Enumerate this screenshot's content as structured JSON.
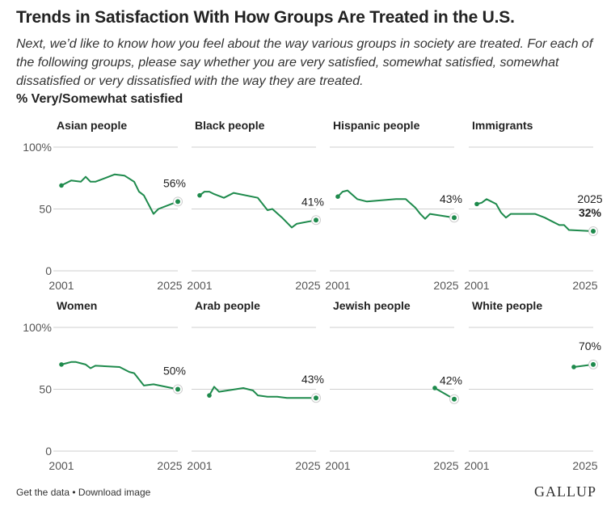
{
  "title": "Trends in Satisfaction With How Groups Are Treated in the U.S.",
  "subtitle": "Next, we’d like to know how you feel about the way various groups in society are treated. For each of the following groups, please say whether you are very satisfied, somewhat satisfied, somewhat dissatisfied or very dissatisfied with the way they are treated.",
  "measure_label": "% Very/Somewhat satisfied",
  "footer": {
    "get_data": "Get the data",
    "separator": " • ",
    "download": "Download image",
    "logo": "GALLUP"
  },
  "colors": {
    "line": "#1e8a4c",
    "grid": "#cfcfcf",
    "end_marker_ring": "#cccccc",
    "text": "#222222"
  },
  "chart_data": [
    {
      "type": "line",
      "title": "Asian people",
      "y_ticks": [
        "100%",
        "50",
        "0"
      ],
      "x_ticks": [
        "2001",
        "2025"
      ],
      "ylim": [
        0,
        100
      ],
      "series": [
        {
          "x": [
            2001,
            2003,
            2005,
            2006,
            2007,
            2008,
            2010,
            2012,
            2014,
            2016,
            2017,
            2018,
            2020,
            2021,
            2025
          ],
          "values": [
            69,
            73,
            72,
            76,
            72,
            72,
            75,
            78,
            77,
            72,
            64,
            61,
            46,
            50,
            56
          ],
          "segments": [
            [
              0,
              14
            ]
          ]
        }
      ],
      "end_label": "56%",
      "end_label_bold": false,
      "end_year_label": ""
    },
    {
      "type": "line",
      "title": "Black people",
      "y_ticks": [
        "100%",
        "50",
        "0"
      ],
      "x_ticks": [
        "2001",
        "2025"
      ],
      "ylim": [
        0,
        100
      ],
      "series": [
        {
          "x": [
            2001,
            2002,
            2003,
            2004,
            2006,
            2007,
            2008,
            2013,
            2015,
            2016,
            2018,
            2020,
            2021,
            2025
          ],
          "values": [
            61,
            64,
            64,
            62,
            59,
            61,
            63,
            59,
            49,
            50,
            43,
            35,
            38,
            41
          ],
          "segments": [
            [
              0,
              13
            ]
          ]
        }
      ],
      "end_label": "41%",
      "end_label_bold": false,
      "end_year_label": ""
    },
    {
      "type": "line",
      "title": "Hispanic people",
      "y_ticks": [
        "100%",
        "50",
        "0"
      ],
      "x_ticks": [
        "2001",
        "2025"
      ],
      "ylim": [
        0,
        100
      ],
      "series": [
        {
          "x": [
            2001,
            2002,
            2003,
            2005,
            2007,
            2013,
            2015,
            2017,
            2018,
            2019,
            2020,
            2025
          ],
          "values": [
            60,
            64,
            65,
            58,
            56,
            58,
            58,
            51,
            46,
            42,
            46,
            43
          ],
          "segments": [
            [
              0,
              11
            ]
          ]
        }
      ],
      "end_label": "43%",
      "end_label_bold": false,
      "end_year_label": ""
    },
    {
      "type": "line",
      "title": "Immigrants",
      "y_ticks": [
        "100%",
        "50",
        "0"
      ],
      "x_ticks": [
        "2001",
        "2025"
      ],
      "ylim": [
        0,
        100
      ],
      "series": [
        {
          "x": [
            2001,
            2002,
            2003,
            2004,
            2005,
            2006,
            2007,
            2008,
            2013,
            2015,
            2016,
            2018,
            2019,
            2020,
            2025
          ],
          "values": [
            54,
            55,
            58,
            56,
            54,
            47,
            43,
            46,
            46,
            43,
            41,
            37,
            37,
            33,
            32
          ],
          "segments": [
            [
              0,
              14
            ]
          ]
        }
      ],
      "end_label": "32%",
      "end_label_bold": true,
      "end_year_label": "2025"
    },
    {
      "type": "line",
      "title": "Women",
      "y_ticks": [
        "100%",
        "50",
        "0"
      ],
      "x_ticks": [
        "2001",
        "2025"
      ],
      "ylim": [
        0,
        100
      ],
      "series": [
        {
          "x": [
            2001,
            2002,
            2003,
            2004,
            2005,
            2006,
            2007,
            2008,
            2013,
            2015,
            2016,
            2018,
            2020,
            2025
          ],
          "values": [
            70,
            71,
            72,
            72,
            71,
            70,
            67,
            69,
            68,
            64,
            63,
            53,
            54,
            50
          ],
          "segments": [
            [
              0,
              13
            ]
          ]
        }
      ],
      "end_label": "50%",
      "end_label_bold": false,
      "end_year_label": ""
    },
    {
      "type": "line",
      "title": "Arab people",
      "y_ticks": [
        "100%",
        "50",
        "0"
      ],
      "x_ticks": [
        "2001",
        "2025"
      ],
      "ylim": [
        0,
        100
      ],
      "series": [
        {
          "x": [
            2003,
            2004,
            2005,
            2010,
            2012,
            2013,
            2015,
            2017,
            2019,
            2025
          ],
          "values": [
            45,
            52,
            48,
            51,
            49,
            45,
            44,
            44,
            43,
            43
          ],
          "segments": [
            [
              0,
              9
            ]
          ]
        }
      ],
      "end_label": "43%",
      "end_label_bold": false,
      "end_year_label": ""
    },
    {
      "type": "line",
      "title": "Jewish people",
      "y_ticks": [
        "100%",
        "50",
        "0"
      ],
      "x_ticks": [
        "2001",
        "2025"
      ],
      "ylim": [
        0,
        100
      ],
      "series": [
        {
          "x": [
            2021,
            2025
          ],
          "values": [
            51,
            42
          ],
          "segments": [
            [
              0,
              1
            ]
          ]
        }
      ],
      "end_label": "42%",
      "end_label_bold": false,
      "end_year_label": ""
    },
    {
      "type": "line",
      "title": "White people",
      "y_ticks": [
        "100%",
        "50",
        "0"
      ],
      "x_ticks": [
        "2001",
        "2025"
      ],
      "ylim": [
        0,
        100
      ],
      "series": [
        {
          "x": [
            2021,
            2025
          ],
          "values": [
            68,
            70
          ],
          "segments": [
            [
              0,
              1
            ]
          ]
        }
      ],
      "end_label": "70%",
      "end_label_bold": false,
      "end_year_label": ""
    }
  ]
}
